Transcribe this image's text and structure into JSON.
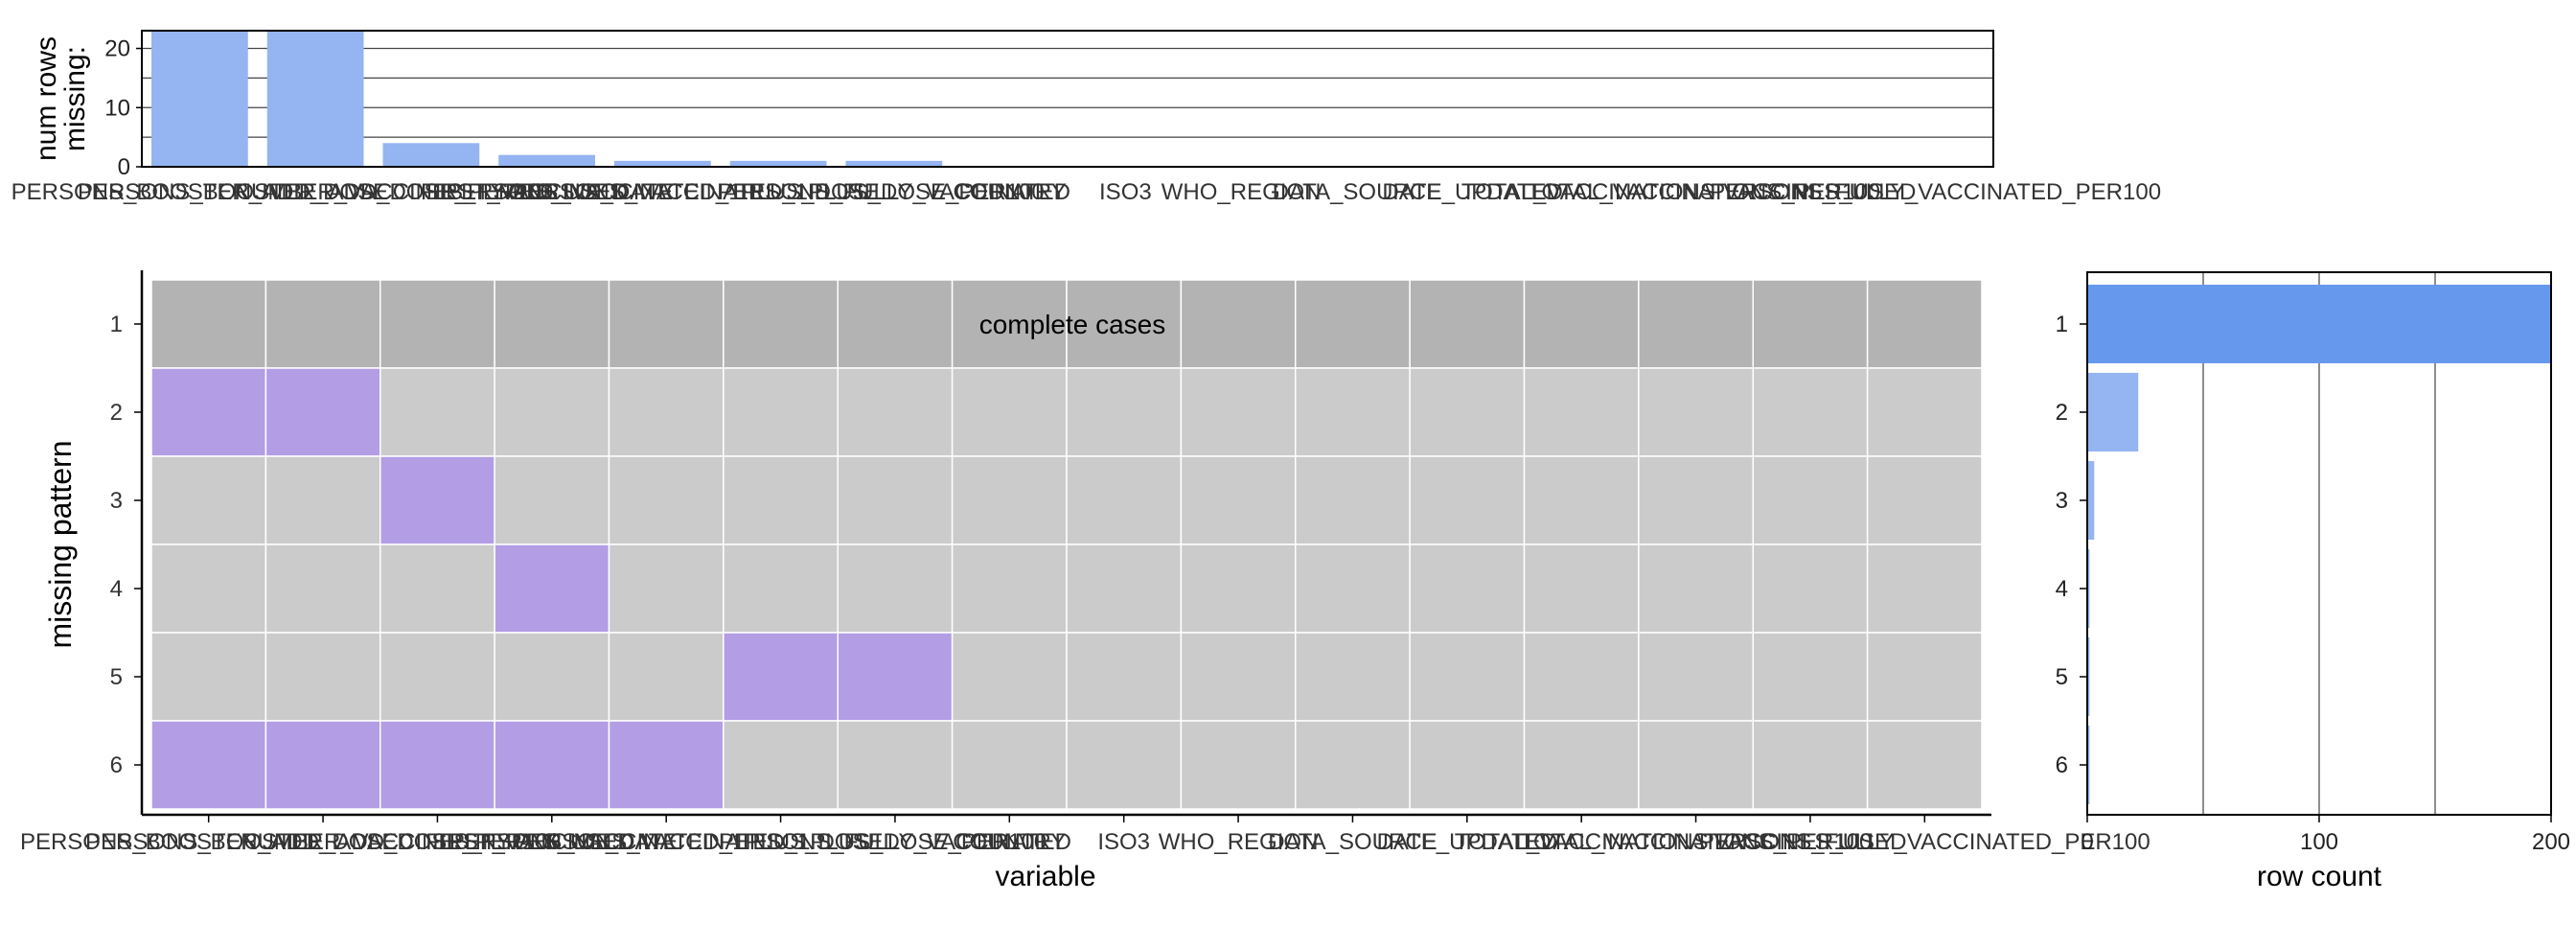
{
  "chart_data": [
    {
      "type": "bar",
      "panel": "top-missing-counts",
      "ylabel_lines": [
        "num rows",
        "missing:"
      ],
      "ylim": [
        0,
        23
      ],
      "yticks": [
        0,
        10,
        20
      ],
      "categories": [
        "PERSONS_BOOSTER_ADD_DOSE",
        "PERSONS_BOOSTER_ADD_DOSE_PER100",
        "NUMBER_VACCINES_TYPES_USED",
        "FIRST_VACCINE_DATE",
        "PERSONS_VACCINATED_1PLUS_DOSE",
        "PERSONS_VACCINATED_1PLUS_DOSE_PER100",
        "PERSONS_FULLY_VACCINATED",
        "COUNTRY",
        "ISO3",
        "WHO_REGION",
        "DATA_SOURCE",
        "DATE_UPDATED",
        "TOTAL_VACCINATIONS",
        "TOTAL_VACCINATIONS_PER100",
        "VACCINES_USED",
        "PERSONS_FULLY_VACCINATED_PER100"
      ],
      "values": [
        23,
        23,
        4,
        2,
        1,
        1,
        1,
        0,
        0,
        0,
        0,
        0,
        0,
        0,
        0,
        0
      ],
      "bar_color": "#94B4F2",
      "grid": true
    },
    {
      "type": "heatmap",
      "panel": "missing-pattern-tiles",
      "xlabel": "variable",
      "ylabel": "missing pattern",
      "columns": [
        "PERSONS_BOOSTER_ADD_DOSE",
        "PERSONS_BOOSTER_ADD_DOSE_PER100",
        "NUMBER_VACCINES_TYPES_USED",
        "FIRST_VACCINE_DATE",
        "PERSONS_VACCINATED_1PLUS_DOSE",
        "PERSONS_VACCINATED_1PLUS_DOSE_PER100",
        "PERSONS_FULLY_VACCINATED",
        "COUNTRY",
        "ISO3",
        "WHO_REGION",
        "DATA_SOURCE",
        "DATE_UPDATED",
        "TOTAL_VACCINATIONS",
        "TOTAL_VACCINATIONS_PER100",
        "VACCINES_USED",
        "PERSONS_FULLY_VACCINATED_PER100"
      ],
      "patterns": [
        "1",
        "2",
        "3",
        "4",
        "5",
        "6"
      ],
      "missing_matrix": [
        [
          0,
          0,
          0,
          0,
          0,
          0,
          0,
          0,
          0,
          0,
          0,
          0,
          0,
          0,
          0,
          0
        ],
        [
          1,
          1,
          0,
          0,
          0,
          0,
          0,
          0,
          0,
          0,
          0,
          0,
          0,
          0,
          0,
          0
        ],
        [
          0,
          0,
          1,
          0,
          0,
          0,
          0,
          0,
          0,
          0,
          0,
          0,
          0,
          0,
          0,
          0
        ],
        [
          0,
          0,
          0,
          1,
          0,
          0,
          0,
          0,
          0,
          0,
          0,
          0,
          0,
          0,
          0,
          0
        ],
        [
          0,
          0,
          0,
          0,
          0,
          1,
          1,
          0,
          0,
          0,
          0,
          0,
          0,
          0,
          0,
          0
        ],
        [
          1,
          1,
          1,
          1,
          1,
          0,
          0,
          0,
          0,
          0,
          0,
          0,
          0,
          0,
          0,
          0
        ]
      ],
      "complete_label": "complete cases",
      "colors": {
        "complete": "#B3B3B3",
        "present": "#CBCBCB",
        "missing": "#B39DE5"
      }
    },
    {
      "type": "bar",
      "orientation": "horizontal",
      "panel": "right-row-counts",
      "xlabel": "row count",
      "categories": [
        "1",
        "2",
        "3",
        "4",
        "5",
        "6"
      ],
      "values": [
        200,
        22,
        3,
        1,
        1,
        1
      ],
      "xlim": [
        0,
        200
      ],
      "xticks": [
        0,
        100,
        200
      ],
      "colors": {
        "highlight": "#6699EE",
        "normal": "#94B4F2"
      },
      "grid": true
    }
  ]
}
